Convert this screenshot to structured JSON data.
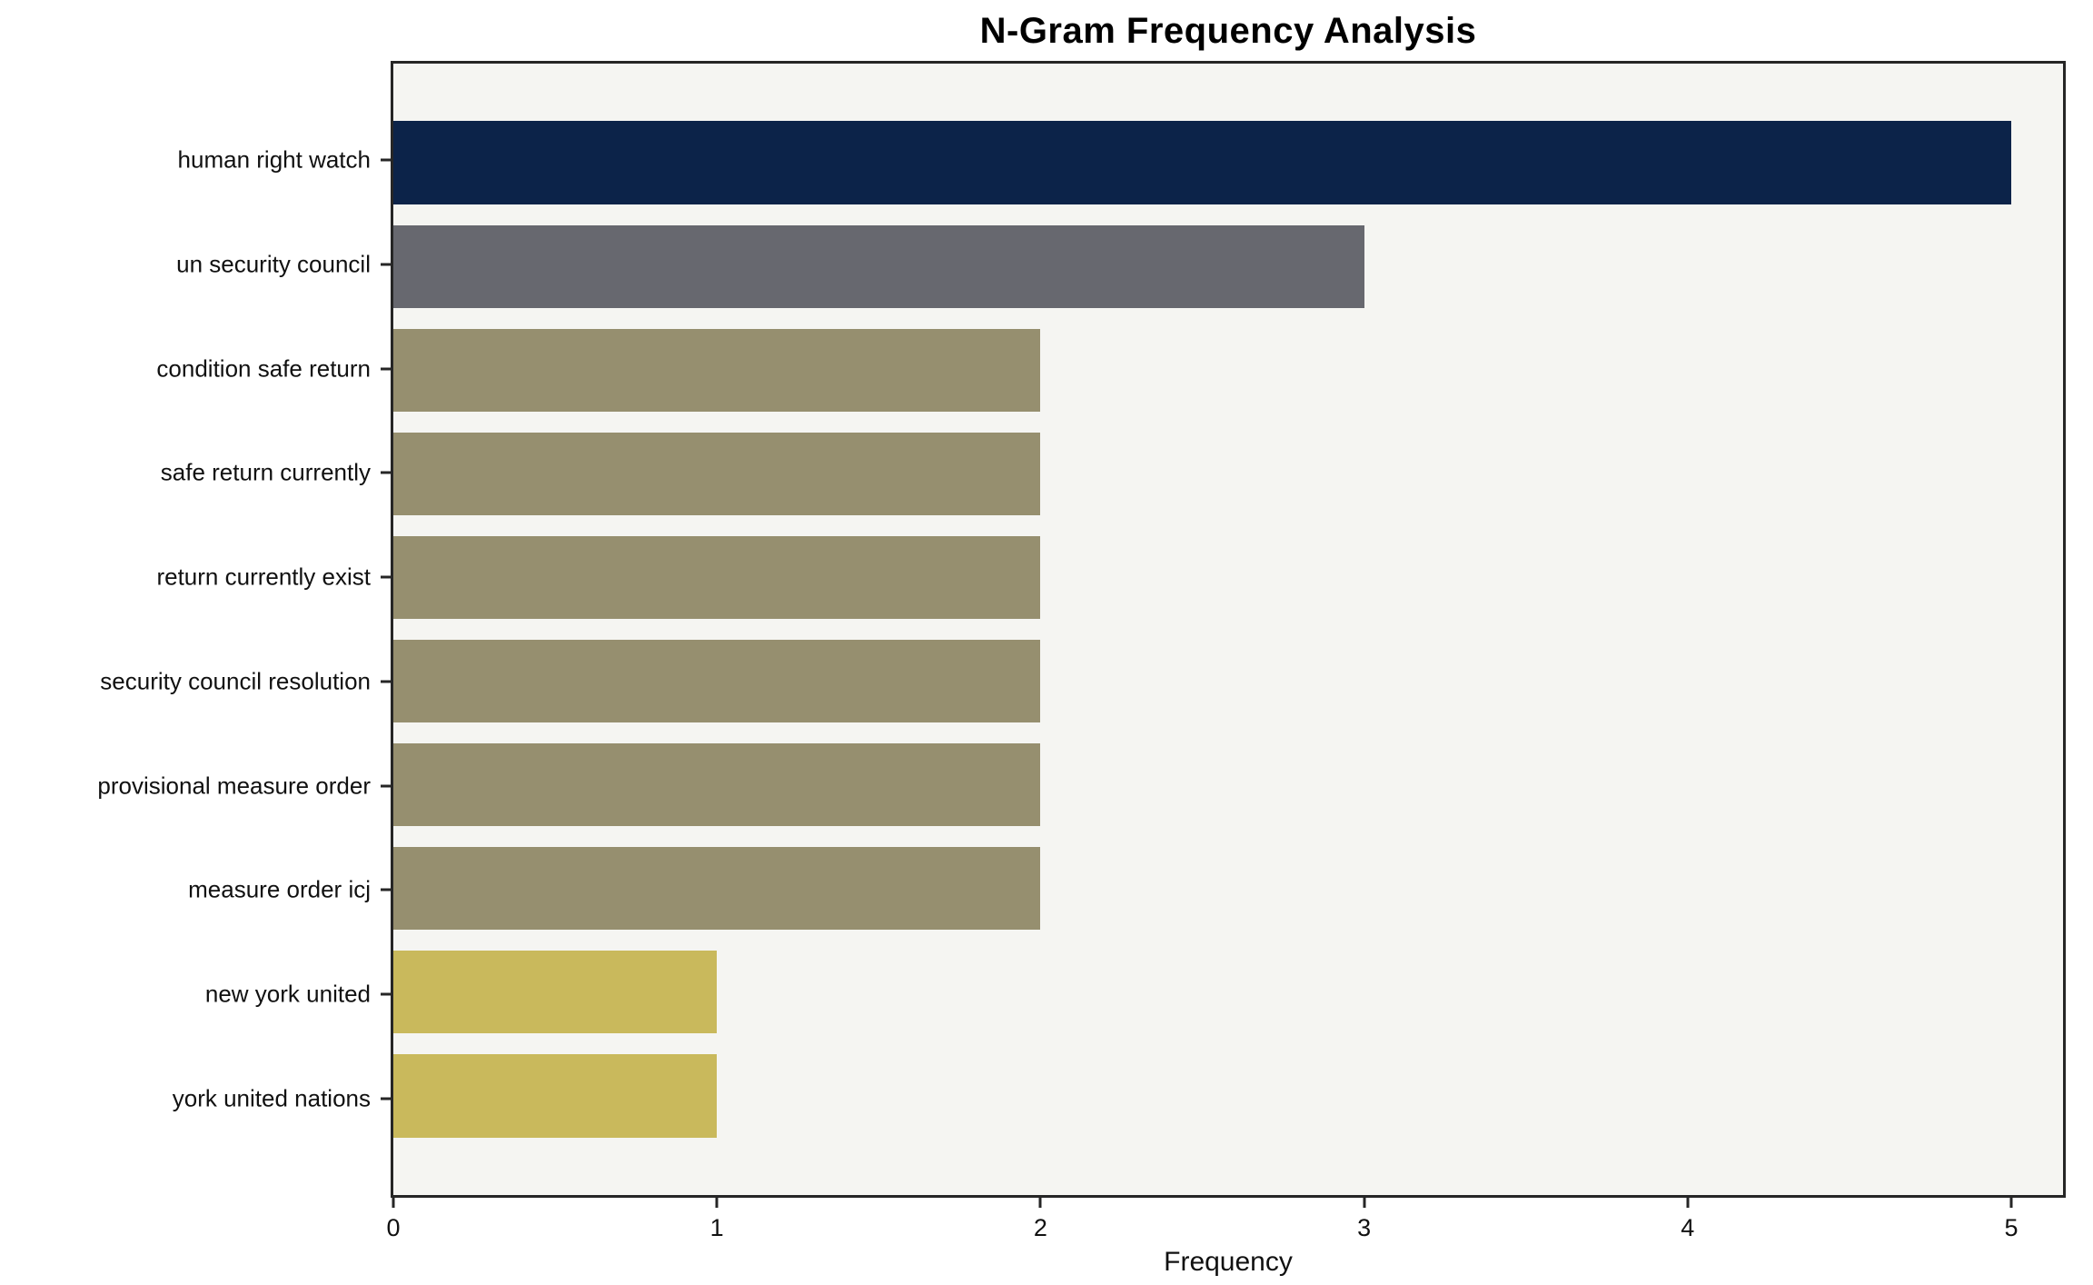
{
  "chart_data": {
    "type": "bar",
    "orientation": "horizontal",
    "title": "N-Gram Frequency Analysis",
    "xlabel": "Frequency",
    "ylabel": "",
    "categories": [
      "human right watch",
      "un security council",
      "condition safe return",
      "safe return currently",
      "return currently exist",
      "security council resolution",
      "provisional measure order",
      "measure order icj",
      "new york united",
      "york united nations"
    ],
    "values": [
      5,
      3,
      2,
      2,
      2,
      2,
      2,
      2,
      1,
      1
    ],
    "bar_colors": [
      "#0c2349",
      "#67686f",
      "#968f6f",
      "#968f6f",
      "#968f6f",
      "#968f6f",
      "#968f6f",
      "#968f6f",
      "#c9b95c",
      "#c9b95c"
    ],
    "xlim": [
      0,
      5.16
    ],
    "xticks": [
      0,
      1,
      2,
      3,
      4,
      5
    ],
    "grid": false,
    "legend": null,
    "colors": {
      "plot_background": "#f5f5f2",
      "page_background": "#ffffff",
      "axis": "#262626",
      "text": "#111111"
    }
  }
}
